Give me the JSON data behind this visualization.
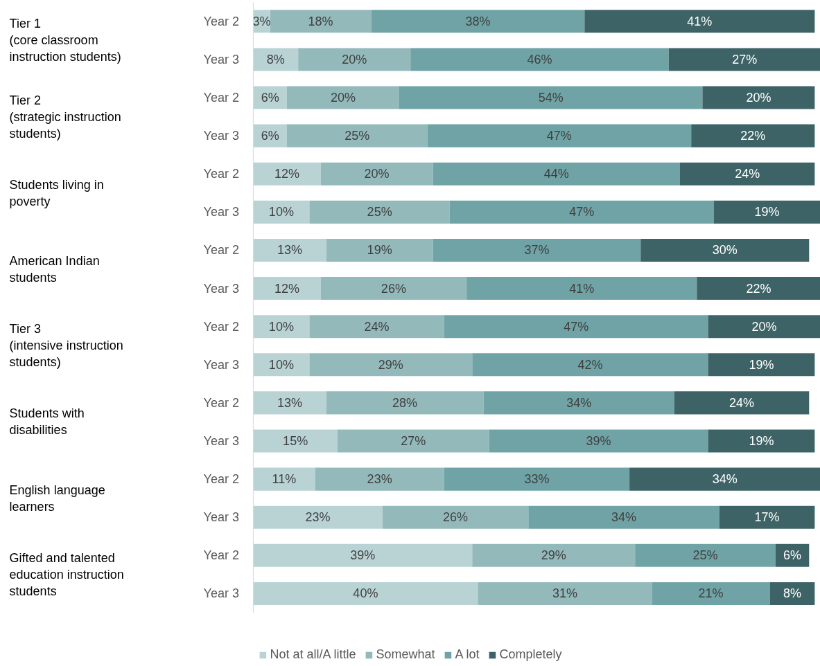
{
  "chart_data": {
    "type": "bar",
    "orientation": "horizontal",
    "stacked": true,
    "legend": "bottom",
    "grid": false,
    "categories": [
      "Year 2",
      "Year 3",
      "Year 2",
      "Year 3",
      "Year 2",
      "Year 3",
      "Year 2",
      "Year 3",
      "Year 2",
      "Year 3",
      "Year 2",
      "Year 3",
      "Year 2",
      "Year 3",
      "Year 2",
      "Year 3"
    ],
    "annotations": [
      "Tier 1\n(core classroom\ninstruction students)",
      "Tier 2\n(strategic instruction\nstudents)",
      "Students living in\npoverty",
      "American Indian\nstudents",
      "Tier 3\n(intensive instruction\nstudents)",
      "Students with\ndisabilities",
      "English language\nlearners",
      "Gifted and talented\neducation instruction\nstudents"
    ],
    "series": [
      {
        "name": "Not at all/A little",
        "color": "#b9d3d5",
        "values": [
          3,
          8,
          6,
          6,
          12,
          10,
          13,
          12,
          10,
          10,
          13,
          15,
          11,
          23,
          39,
          40
        ],
        "value_labels": [
          "3%",
          "8%",
          "6%",
          "6%",
          "12%",
          "10%",
          "13%",
          "12%",
          "10%",
          "10%",
          "13%",
          "15%",
          "11%",
          "23%",
          "39%",
          "40%"
        ]
      },
      {
        "name": "Somewhat",
        "color": "#93b9bb",
        "values": [
          18,
          20,
          20,
          25,
          20,
          25,
          19,
          26,
          24,
          29,
          28,
          27,
          23,
          26,
          29,
          31
        ],
        "value_labels": [
          "18%",
          "20%",
          "20%",
          "25%",
          "20%",
          "25%",
          "19%",
          "26%",
          "24%",
          "29%",
          "28%",
          "27%",
          "23%",
          "26%",
          "29%",
          "31%"
        ]
      },
      {
        "name": "A lot",
        "color": "#6fa3a6",
        "values": [
          38,
          46,
          54,
          47,
          44,
          47,
          37,
          41,
          47,
          42,
          34,
          39,
          33,
          34,
          25,
          21
        ],
        "value_labels": [
          "38%",
          "46%",
          "54%",
          "47%",
          "44%",
          "47%",
          "37%",
          "41%",
          "47%",
          "42%",
          "34%",
          "39%",
          "33%",
          "34%",
          "25%",
          "21%"
        ]
      },
      {
        "name": "Completely",
        "color": "#3d6366",
        "values": [
          41,
          27,
          20,
          22,
          24,
          19,
          30,
          22,
          20,
          19,
          24,
          19,
          34,
          17,
          6,
          8
        ],
        "value_labels": [
          "41%",
          "27%",
          "20%",
          "22%",
          "24%",
          "19%",
          "30%",
          "22%",
          "20%",
          "19%",
          "24%",
          "19%",
          "34%",
          "17%",
          "6%",
          "8%"
        ]
      }
    ]
  }
}
